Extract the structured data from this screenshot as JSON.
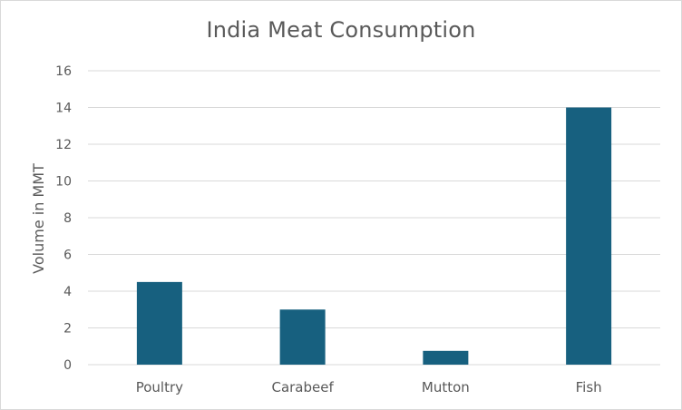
{
  "chart_data": {
    "type": "bar",
    "title": "India Meat Consumption",
    "xlabel": "",
    "ylabel": "Volume in MMT",
    "categories": [
      "Poultry",
      "Carabeef",
      "Mutton",
      "Fish"
    ],
    "values": [
      4.5,
      3.0,
      0.75,
      14.0
    ],
    "ylim": [
      0,
      16
    ],
    "yticks": [
      "0",
      "2",
      "4",
      "6",
      "8",
      "10",
      "12",
      "14",
      "16"
    ],
    "grid": true,
    "legend": "none",
    "bar_color": "#17607f",
    "gridline_color": "#d9d9d9",
    "text_color": "#595959"
  }
}
